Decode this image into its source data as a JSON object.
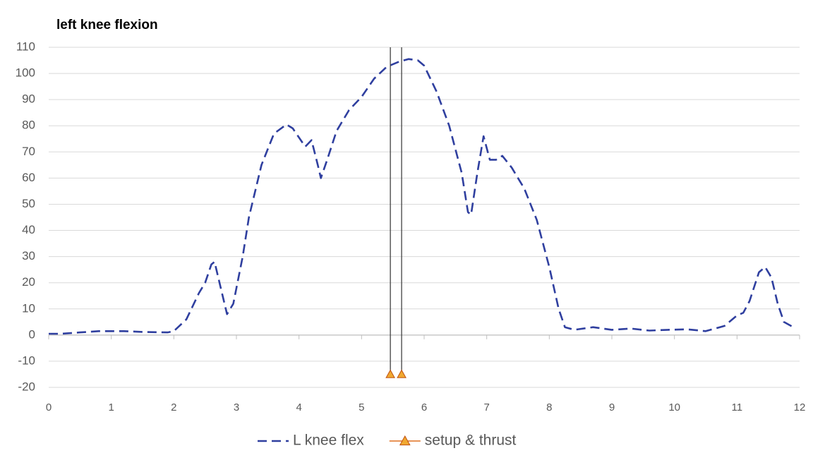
{
  "chart_data": {
    "type": "line",
    "title": "left knee flexion",
    "xlim": [
      0,
      12
    ],
    "xticks": [
      0,
      1,
      2,
      3,
      4,
      5,
      6,
      7,
      8,
      9,
      10,
      11,
      12
    ],
    "ylim": [
      -20,
      110
    ],
    "yticks": [
      -20,
      -10,
      0,
      10,
      20,
      30,
      40,
      50,
      60,
      70,
      80,
      90,
      100,
      110
    ],
    "grid": true,
    "legend": "bottom",
    "series": [
      {
        "name": "L knee flex",
        "color": "#2f3f9f",
        "line_style": "dashed",
        "x": [
          0,
          0.2,
          0.5,
          0.8,
          1.2,
          1.5,
          1.9,
          2.0,
          2.2,
          2.4,
          2.5,
          2.6,
          2.65,
          2.75,
          2.85,
          2.95,
          3.1,
          3.2,
          3.4,
          3.6,
          3.8,
          3.9,
          4.1,
          4.2,
          4.3,
          4.35,
          4.45,
          4.6,
          4.8,
          5.0,
          5.2,
          5.4,
          5.6,
          5.75,
          5.9,
          6.0,
          6.2,
          6.4,
          6.6,
          6.7,
          6.75,
          6.85,
          6.95,
          7.05,
          7.15,
          7.25,
          7.4,
          7.6,
          7.8,
          8.0,
          8.15,
          8.25,
          8.4,
          8.7,
          9.0,
          9.3,
          9.6,
          9.9,
          10.2,
          10.5,
          10.8,
          11.0,
          11.1,
          11.2,
          11.35,
          11.45,
          11.55,
          11.65,
          11.75,
          11.9
        ],
        "values": [
          0.5,
          0.5,
          1,
          1.5,
          1.5,
          1.2,
          1,
          1.5,
          6,
          16,
          20,
          27,
          28,
          18,
          8,
          12,
          30,
          45,
          65,
          77,
          80.5,
          79,
          72,
          74.5,
          65,
          60,
          67,
          78,
          86,
          91,
          98,
          102.5,
          104.5,
          105.5,
          105,
          103,
          93,
          80,
          62,
          47,
          46,
          62,
          76,
          67,
          67,
          68.5,
          64,
          56,
          44,
          26,
          10,
          3,
          2,
          3,
          2,
          2.5,
          1.7,
          2,
          2.2,
          1.5,
          3.5,
          7.5,
          8.5,
          13,
          24,
          26,
          22,
          12,
          5,
          3
        ]
      },
      {
        "name": "setup & thrust",
        "color": "#f0a830",
        "marker": "triangle",
        "drop_lines": true,
        "x": [
          5.46,
          5.64
        ],
        "values": [
          -15,
          -15
        ]
      }
    ]
  }
}
